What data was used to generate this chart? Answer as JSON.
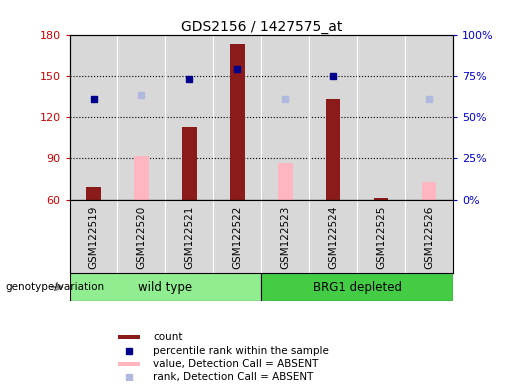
{
  "title": "GDS2156 / 1427575_at",
  "samples": [
    "GSM122519",
    "GSM122520",
    "GSM122521",
    "GSM122522",
    "GSM122523",
    "GSM122524",
    "GSM122525",
    "GSM122526"
  ],
  "count_values": [
    69,
    null,
    113,
    173,
    null,
    133,
    61,
    null
  ],
  "absent_value_bars": [
    null,
    92,
    null,
    null,
    87,
    null,
    null,
    73
  ],
  "absent_rank_dots": [
    null,
    136,
    null,
    null,
    133,
    null,
    null,
    133
  ],
  "present_rank_dots": [
    133,
    null,
    148,
    155,
    null,
    150,
    null,
    null
  ],
  "ylim_left": [
    60,
    180
  ],
  "ylim_right": [
    0,
    100
  ],
  "yticks_left": [
    60,
    90,
    120,
    150,
    180
  ],
  "yticks_right": [
    0,
    25,
    50,
    75,
    100
  ],
  "yticklabels_right": [
    "0%",
    "25%",
    "50%",
    "75%",
    "100%"
  ],
  "bar_color_present": "#8b1a1a",
  "bar_color_absent": "#ffb6c1",
  "dot_color_present": "#00008b",
  "dot_color_absent": "#b0b8e0",
  "left_axis_color": "#cc0000",
  "right_axis_color": "#0000cc",
  "bg_color": "#d8d8d8",
  "xtick_bg": "#d8d8d8",
  "wt_color": "#90ee90",
  "brg_color": "#44cc44",
  "genotype_label": "genotype/variation",
  "legend_items": [
    {
      "label": "count",
      "color": "#8b1a1a",
      "type": "rect"
    },
    {
      "label": "percentile rank within the sample",
      "color": "#00008b",
      "type": "square"
    },
    {
      "label": "value, Detection Call = ABSENT",
      "color": "#ffb6c1",
      "type": "rect"
    },
    {
      "label": "rank, Detection Call = ABSENT",
      "color": "#b0b8e0",
      "type": "square"
    }
  ]
}
